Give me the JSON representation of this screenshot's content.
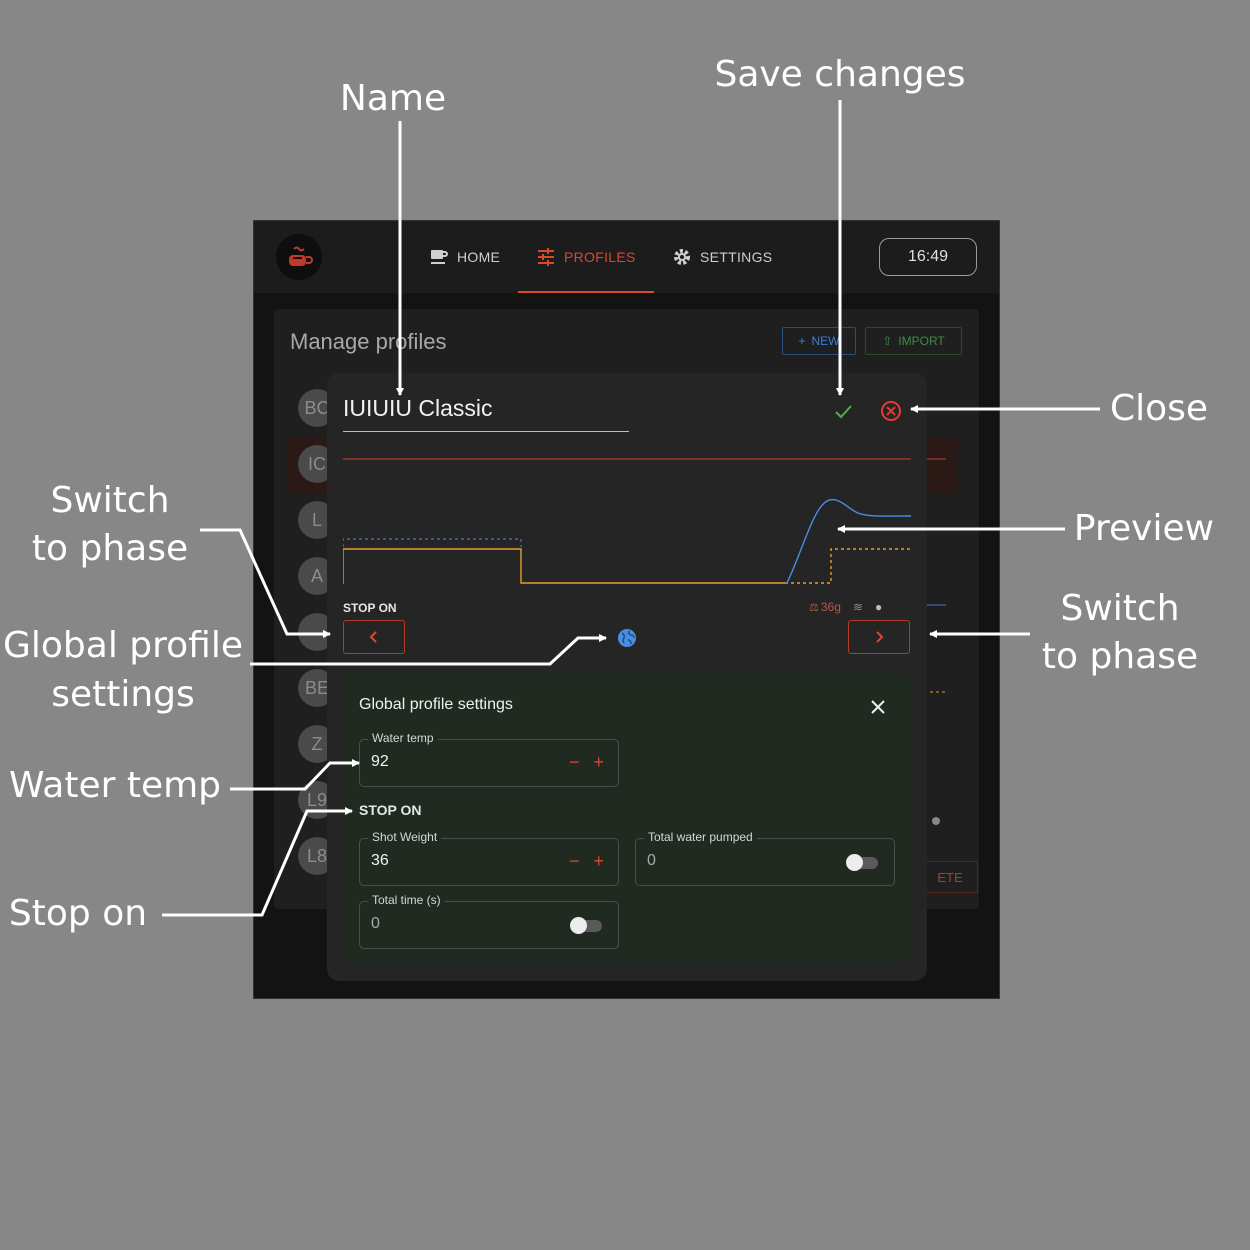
{
  "app": {
    "nav": {
      "home": "HOME",
      "profiles": "PROFILES",
      "settings": "SETTINGS"
    },
    "clock": "16:49",
    "accent_color": "#d94a2b"
  },
  "manage": {
    "title": "Manage profiles",
    "new_label": "NEW",
    "import_label": "IMPORT",
    "avatars": [
      "BC",
      "IC",
      "L",
      "A",
      "",
      "BE",
      "Z",
      "L9",
      "L8"
    ],
    "delete_label": "ETE"
  },
  "dialog": {
    "profile_name": "IUIUIU Classic",
    "stop_on_label": "STOP ON",
    "stats": {
      "weight": "36g"
    }
  },
  "global_settings": {
    "title": "Global profile settings",
    "water_temp": {
      "label": "Water temp",
      "value": "92"
    },
    "stop_on_label": "STOP ON",
    "shot_weight": {
      "label": "Shot Weight",
      "value": "36"
    },
    "total_water": {
      "label": "Total water pumped",
      "value": "0",
      "enabled": false
    },
    "total_time": {
      "label": "Total time (s)",
      "value": "0",
      "enabled": false
    }
  },
  "annotations": {
    "name": "Name",
    "save": "Save changes",
    "close": "Close",
    "preview": "Preview",
    "switch_left_1": "Switch",
    "switch_left_2": "to phase",
    "switch_right_1": "Switch",
    "switch_right_2": "to phase",
    "global_1": "Global profile",
    "global_2": "settings",
    "water_temp": "Water temp",
    "stop_on": "Stop on"
  }
}
